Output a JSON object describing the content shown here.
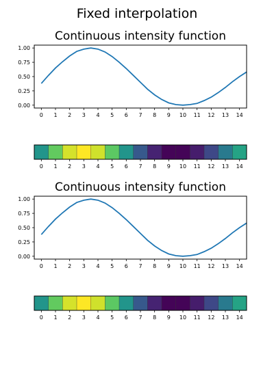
{
  "figure": {
    "suptitle": "Fixed interpolation"
  },
  "chart_data": [
    {
      "type": "line",
      "title": "Continuous intensity function",
      "x": [
        0,
        0.5,
        1,
        1.5,
        2,
        2.5,
        3,
        3.5,
        4,
        4.5,
        5,
        5.5,
        6,
        6.5,
        7,
        7.5,
        8,
        8.5,
        9,
        9.5,
        10,
        10.5,
        11,
        11.5,
        12,
        12.5,
        13,
        13.5,
        14,
        14.5
      ],
      "y": [
        0.38,
        0.52,
        0.65,
        0.76,
        0.86,
        0.94,
        0.98,
        1.0,
        0.98,
        0.93,
        0.85,
        0.75,
        0.64,
        0.52,
        0.4,
        0.28,
        0.18,
        0.1,
        0.04,
        0.01,
        0.0,
        0.01,
        0.03,
        0.08,
        0.14,
        0.22,
        0.31,
        0.41,
        0.5,
        0.58
      ],
      "xlim": [
        -0.5,
        14.5
      ],
      "ylim": [
        -0.05,
        1.05
      ],
      "xticks": [
        "0",
        "1",
        "2",
        "3",
        "4",
        "5",
        "6",
        "7",
        "8",
        "9",
        "10",
        "11",
        "12",
        "13",
        "14"
      ],
      "yticks": [
        "0.00",
        "0.25",
        "0.50",
        "0.75",
        "1.00"
      ],
      "ytick_values": [
        0,
        0.25,
        0.5,
        0.75,
        1.0
      ],
      "line_color": "#1f77b4"
    },
    {
      "type": "heatmap",
      "colormap": "viridis",
      "values": [
        0.52,
        0.76,
        0.94,
        1.0,
        0.93,
        0.75,
        0.52,
        0.28,
        0.1,
        0.01,
        0.01,
        0.08,
        0.22,
        0.41,
        0.58
      ],
      "xticks": [
        "0",
        "1",
        "2",
        "3",
        "4",
        "5",
        "6",
        "7",
        "8",
        "9",
        "10",
        "11",
        "12",
        "13",
        "14"
      ]
    },
    {
      "type": "line",
      "title": "Continuous intensity function",
      "x": [
        0,
        0.5,
        1,
        1.5,
        2,
        2.5,
        3,
        3.5,
        4,
        4.5,
        5,
        5.5,
        6,
        6.5,
        7,
        7.5,
        8,
        8.5,
        9,
        9.5,
        10,
        10.5,
        11,
        11.5,
        12,
        12.5,
        13,
        13.5,
        14,
        14.5
      ],
      "y": [
        0.38,
        0.52,
        0.65,
        0.76,
        0.86,
        0.94,
        0.98,
        1.0,
        0.98,
        0.93,
        0.85,
        0.75,
        0.64,
        0.52,
        0.4,
        0.28,
        0.18,
        0.1,
        0.04,
        0.01,
        0.0,
        0.01,
        0.03,
        0.08,
        0.14,
        0.22,
        0.31,
        0.41,
        0.5,
        0.58
      ],
      "xlim": [
        -0.5,
        14.5
      ],
      "ylim": [
        -0.05,
        1.05
      ],
      "xticks": [
        "0",
        "1",
        "2",
        "3",
        "4",
        "5",
        "6",
        "7",
        "8",
        "9",
        "10",
        "11",
        "12",
        "13",
        "14"
      ],
      "yticks": [
        "0.00",
        "0.25",
        "0.50",
        "0.75",
        "1.00"
      ],
      "ytick_values": [
        0,
        0.25,
        0.5,
        0.75,
        1.0
      ],
      "line_color": "#1f77b4"
    },
    {
      "type": "heatmap",
      "colormap": "viridis",
      "values": [
        0.52,
        0.76,
        0.94,
        1.0,
        0.93,
        0.75,
        0.52,
        0.28,
        0.1,
        0.01,
        0.01,
        0.08,
        0.22,
        0.41,
        0.58
      ],
      "xticks": [
        "0",
        "1",
        "2",
        "3",
        "4",
        "5",
        "6",
        "7",
        "8",
        "9",
        "10",
        "11",
        "12",
        "13",
        "14"
      ]
    }
  ]
}
